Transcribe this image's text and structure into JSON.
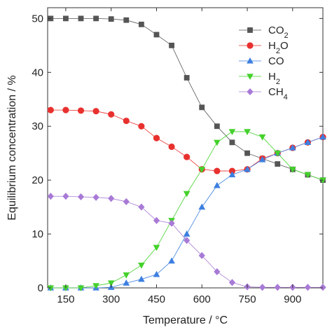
{
  "chart_data": {
    "type": "line",
    "title": "",
    "xlabel": "Temperature / °C",
    "ylabel": "Equilibrium concentration / %",
    "xlim": [
      90,
      1000
    ],
    "ylim": [
      0,
      52
    ],
    "xticks": [
      150,
      300,
      450,
      600,
      750,
      900
    ],
    "yticks": [
      0,
      10,
      20,
      30,
      40,
      50
    ],
    "grid": false,
    "legend_position": "top-right",
    "x": [
      100,
      150,
      200,
      250,
      300,
      350,
      400,
      450,
      500,
      550,
      600,
      650,
      700,
      750,
      800,
      850,
      900,
      950,
      1000
    ],
    "series": [
      {
        "name": "CO₂",
        "name_parts": [
          "CO",
          "2"
        ],
        "marker": "square",
        "color": "#555555",
        "line_color": "#555555",
        "values": [
          50.0,
          50.0,
          50.0,
          50.0,
          49.9,
          49.7,
          48.9,
          47.0,
          45.0,
          39.0,
          33.5,
          30.0,
          27.0,
          25.0,
          24.0,
          23.0,
          22.0,
          21.0,
          20.0
        ]
      },
      {
        "name": "H₂O",
        "name_parts": [
          "H",
          "2",
          "O"
        ],
        "marker": "circle",
        "color": "#e8312f",
        "line_color": "#e8312f",
        "values": [
          33.0,
          33.0,
          32.9,
          32.8,
          32.2,
          31.0,
          30.0,
          27.8,
          26.2,
          24.3,
          22.0,
          21.7,
          21.7,
          22.0,
          24.0,
          25.0,
          26.0,
          27.0,
          28.0
        ]
      },
      {
        "name": "CO",
        "name_parts": [
          "CO"
        ],
        "marker": "triangle-up",
        "color": "#3d7fe0",
        "line_color": "#3d7fe0",
        "values": [
          0.0,
          0.0,
          0.0,
          0.0,
          0.1,
          0.9,
          1.6,
          2.5,
          5.0,
          10.0,
          15.0,
          19.0,
          21.0,
          22.0,
          23.8,
          25.0,
          26.0,
          27.0,
          28.0
        ]
      },
      {
        "name": "H₂",
        "name_parts": [
          "H",
          "2"
        ],
        "marker": "triangle-down",
        "color": "#44d12c",
        "line_color": "#44d12c",
        "values": [
          0.0,
          0.0,
          0.0,
          0.4,
          0.9,
          2.4,
          4.2,
          7.5,
          12.5,
          17.5,
          22.0,
          27.0,
          29.0,
          29.0,
          28.0,
          25.0,
          22.0,
          21.0,
          20.0
        ]
      },
      {
        "name": "CH₄",
        "name_parts": [
          "CH",
          "4"
        ],
        "marker": "diamond",
        "color": "#a87ad6",
        "line_color": "#a87ad6",
        "values": [
          17.0,
          17.0,
          16.9,
          16.8,
          16.6,
          16.0,
          15.0,
          12.5,
          12.0,
          8.8,
          6.0,
          3.0,
          1.0,
          0.2,
          0.1,
          0.1,
          0.1,
          0.1,
          0.1
        ]
      }
    ]
  }
}
